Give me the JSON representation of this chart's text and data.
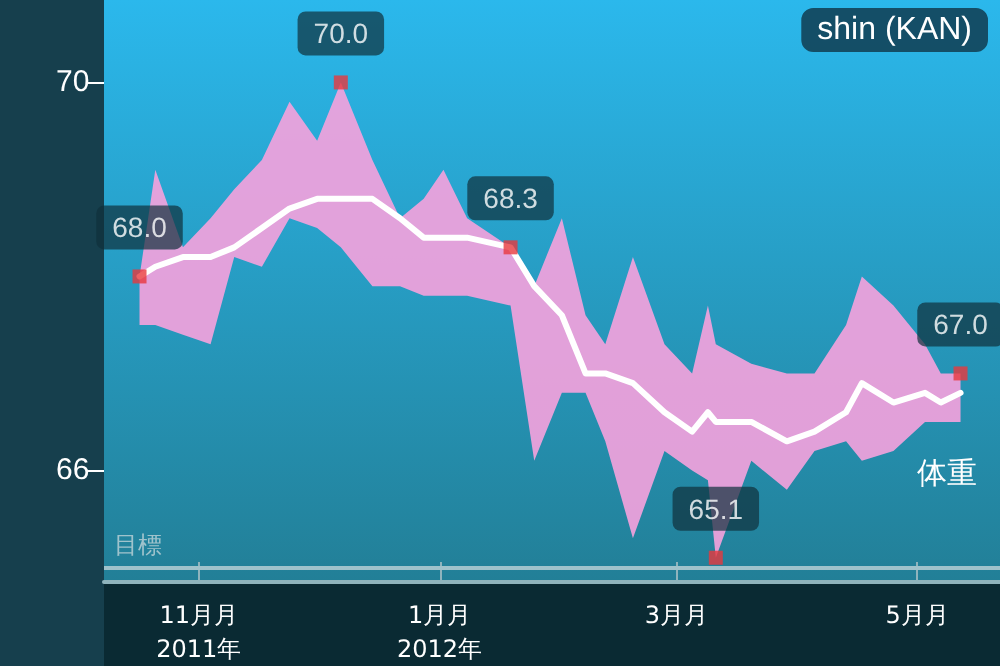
{
  "chart_data": {
    "type": "line",
    "title": "shin (KAN)",
    "x": [
      "2011-10-17",
      "2011-10-21",
      "2011-10-28",
      "2011-11-04",
      "2011-11-10",
      "2011-11-17",
      "2011-11-24",
      "2011-12-01",
      "2011-12-07",
      "2011-12-15",
      "2011-12-22",
      "2011-12-28",
      "2012-01-02",
      "2012-01-08",
      "2012-01-19",
      "2012-01-25",
      "2012-02-01",
      "2012-02-07",
      "2012-02-12",
      "2012-02-19",
      "2012-02-27",
      "2012-03-05",
      "2012-03-09",
      "2012-03-11",
      "2012-03-20",
      "2012-03-29",
      "2012-04-05",
      "2012-04-13",
      "2012-04-17",
      "2012-04-25",
      "2012-05-03",
      "2012-05-07",
      "2012-05-12"
    ],
    "series": [
      {
        "name": "体重",
        "color": "#ffffff",
        "marker": "none",
        "values": [
          68.0,
          68.1,
          68.2,
          68.2,
          68.3,
          68.5,
          68.7,
          68.8,
          68.8,
          68.8,
          68.6,
          68.4,
          68.4,
          68.4,
          68.3,
          67.9,
          67.6,
          67.0,
          67.0,
          66.9,
          66.6,
          66.4,
          66.6,
          66.5,
          66.5,
          66.3,
          66.4,
          66.6,
          66.9,
          66.7,
          66.8,
          66.7,
          66.8
        ],
        "lower": [
          67.5,
          67.5,
          67.4,
          67.3,
          68.2,
          68.1,
          68.6,
          68.5,
          68.3,
          67.9,
          67.9,
          67.8,
          67.8,
          67.8,
          67.7,
          66.1,
          66.8,
          66.8,
          66.3,
          65.3,
          66.2,
          66.0,
          65.9,
          65.1,
          66.1,
          65.8,
          66.2,
          66.3,
          66.1,
          66.2,
          66.5,
          66.5,
          66.5
        ],
        "upper": [
          68.0,
          69.1,
          68.3,
          68.6,
          68.9,
          69.2,
          69.8,
          69.4,
          70.0,
          69.2,
          68.6,
          68.8,
          69.1,
          68.6,
          68.3,
          67.9,
          68.6,
          67.6,
          67.3,
          68.2,
          67.3,
          67.0,
          67.7,
          67.3,
          67.1,
          67.0,
          67.0,
          67.5,
          68.0,
          67.7,
          67.3,
          67.0,
          67.0
        ]
      },
      {
        "type": "scatter",
        "color": "#e8383d",
        "marker": "square",
        "x": [
          "2011-10-17",
          "2011-12-07",
          "2012-01-19",
          "2012-03-11",
          "2012-05-12"
        ],
        "values": [
          68.0,
          70.0,
          68.3,
          65.1,
          67.0
        ],
        "value_labels": [
          "68.0",
          "70.0",
          "68.3",
          "65.1",
          "67.0"
        ]
      }
    ],
    "xlim": [
      "2011-10-08",
      "2012-05-22"
    ],
    "xticks": [
      {
        "value": "2011-11-01",
        "label": "11月月\n2011年"
      },
      {
        "value": "2012-01-01",
        "label": "1月月\n2012年"
      },
      {
        "value": "2012-03-01",
        "label": "3月月"
      },
      {
        "value": "2012-05-01",
        "label": "5月月"
      }
    ],
    "ylim": [
      64.85,
      70.85
    ],
    "yticks": [
      70,
      66
    ],
    "ref_lines": [
      {
        "axis": "y",
        "value": 65.0,
        "label": "目標",
        "color": "#9fc3cc"
      }
    ],
    "grid": false,
    "legend": false
  }
}
